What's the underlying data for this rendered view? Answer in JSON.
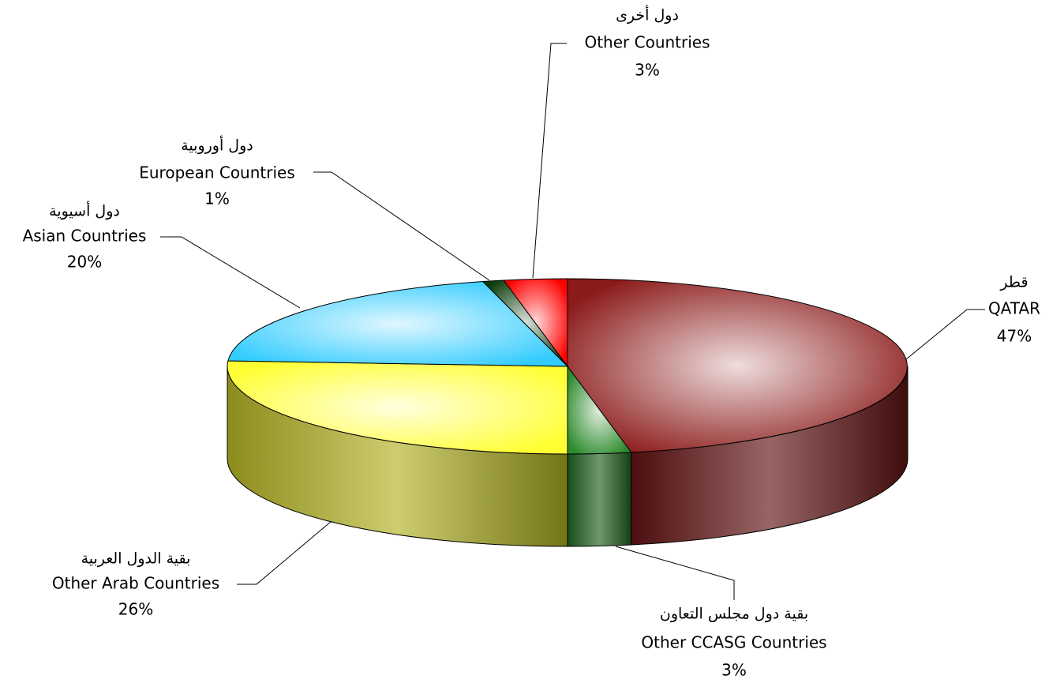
{
  "chart_data": {
    "type": "pie",
    "labels_ar": [
      "قطر",
      "بقية دول مجلس التعاون",
      "بقية الدول العربية",
      "دول أسيوية",
      "دول أوروبية",
      "دول أخرى"
    ],
    "categories": [
      "QATAR",
      "Other CCASG Countries",
      "Other Arab Countries",
      "Asian Countries",
      "European Countries",
      "Other Countries"
    ],
    "values": [
      47,
      3,
      26,
      20,
      1,
      3
    ],
    "value_labels": [
      "47%",
      "3%",
      "26%",
      "20%",
      "1%",
      "3%"
    ],
    "colors": [
      "#8b1a1a",
      "#2e8b2e",
      "#ffff33",
      "#33ccff",
      "#0b3d0b",
      "#ff0000"
    ],
    "three_d": true
  }
}
